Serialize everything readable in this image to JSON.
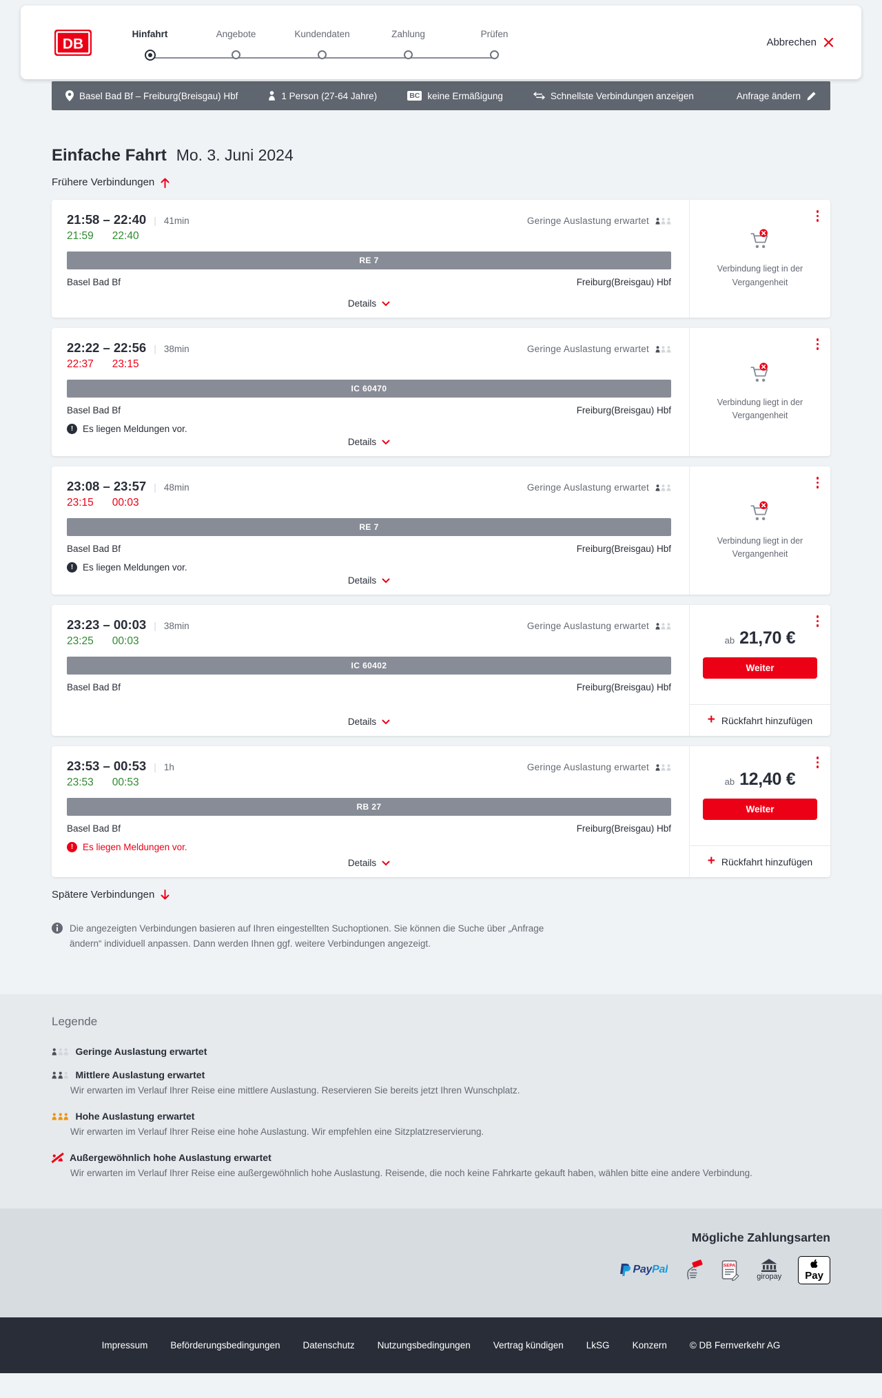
{
  "header": {
    "logo_text": "DB",
    "steps": [
      {
        "label": "Hinfahrt",
        "active": true
      },
      {
        "label": "Angebote",
        "active": false
      },
      {
        "label": "Kundendaten",
        "active": false
      },
      {
        "label": "Zahlung",
        "active": false
      },
      {
        "label": "Prüfen",
        "active": false
      }
    ],
    "cancel_label": "Abbrechen"
  },
  "searchbar": {
    "route": "Basel Bad Bf – Freiburg(Breisgau) Hbf",
    "passengers": "1 Person (27-64 Jahre)",
    "bahncard_badge": "BC",
    "discount": "keine Ermäßigung",
    "fastest_toggle": "Schnellste Verbindungen anzeigen",
    "edit_request": "Anfrage ändern"
  },
  "main": {
    "trip_type": "Einfache Fahrt",
    "trip_date": "Mo. 3. Juni 2024",
    "earlier_link": "Frühere Verbindungen",
    "later_link": "Spätere Verbindungen",
    "info_note": "Die angezeigten Verbindungen basieren auf Ihren eingestellten Suchoptionen. Sie können die Suche über „Anfrage ändern“ individuell anpassen. Dann werden Ihnen ggf. weitere Verbindungen angezeigt.",
    "connections": [
      {
        "time_range": "21:58 – 22:40",
        "duration": "41min",
        "departure_actual": "21:59",
        "arrival_actual": "22:40",
        "punctuality": "ontime",
        "occupancy": "Geringe Auslastung erwartet",
        "occupancy_level": "low",
        "line": "RE 7",
        "from": "Basel Bad Bf",
        "to": "Freiburg(Breisgau) Hbf",
        "message": null,
        "message_severity": null,
        "details_label": "Details",
        "offer": {
          "type": "past",
          "text": "Verbindung liegt in der Vergangenheit"
        }
      },
      {
        "time_range": "22:22 – 22:56",
        "duration": "38min",
        "departure_actual": "22:37",
        "arrival_actual": "23:15",
        "punctuality": "delayed",
        "occupancy": "Geringe Auslastung erwartet",
        "occupancy_level": "low",
        "line": "IC 60470",
        "from": "Basel Bad Bf",
        "to": "Freiburg(Breisgau) Hbf",
        "message": "Es liegen Meldungen vor.",
        "message_severity": "info",
        "details_label": "Details",
        "offer": {
          "type": "past",
          "text": "Verbindung liegt in der Vergangenheit"
        }
      },
      {
        "time_range": "23:08 – 23:57",
        "duration": "48min",
        "departure_actual": "23:15",
        "arrival_actual": "00:03",
        "punctuality": "delayed",
        "occupancy": "Geringe Auslastung erwartet",
        "occupancy_level": "low",
        "line": "RE 7",
        "from": "Basel Bad Bf",
        "to": "Freiburg(Breisgau) Hbf",
        "message": "Es liegen Meldungen vor.",
        "message_severity": "info",
        "details_label": "Details",
        "offer": {
          "type": "past",
          "text": "Verbindung liegt in der Vergangenheit"
        }
      },
      {
        "time_range": "23:23 – 00:03",
        "duration": "38min",
        "departure_actual": "23:25",
        "arrival_actual": "00:03",
        "punctuality": "ontime",
        "occupancy": "Geringe Auslastung erwartet",
        "occupancy_level": "low",
        "line": "IC 60402",
        "from": "Basel Bad Bf",
        "to": "Freiburg(Breisgau) Hbf",
        "message": null,
        "message_severity": null,
        "details_label": "Details",
        "offer": {
          "type": "price",
          "prefix": "ab",
          "price": "21,70 €",
          "cta": "Weiter",
          "add_return": "Rückfahrt hinzufügen"
        }
      },
      {
        "time_range": "23:53 – 00:53",
        "duration": "1h",
        "departure_actual": "23:53",
        "arrival_actual": "00:53",
        "punctuality": "ontime",
        "occupancy": "Geringe Auslastung erwartet",
        "occupancy_level": "low",
        "line": "RB 27",
        "from": "Basel Bad Bf",
        "to": "Freiburg(Breisgau) Hbf",
        "message": "Es liegen Meldungen vor.",
        "message_severity": "critical",
        "details_label": "Details",
        "offer": {
          "type": "price",
          "prefix": "ab",
          "price": "12,40 €",
          "cta": "Weiter",
          "add_return": "Rückfahrt hinzufügen"
        }
      }
    ]
  },
  "legend": {
    "title": "Legende",
    "items": [
      {
        "icon": "low",
        "label": "Geringe Auslastung erwartet",
        "description": null
      },
      {
        "icon": "medium",
        "label": "Mittlere Auslastung erwartet",
        "description": "Wir erwarten im Verlauf Ihrer Reise eine mittlere Auslastung. Reservieren Sie bereits jetzt Ihren Wunschplatz."
      },
      {
        "icon": "high",
        "label": "Hohe Auslastung erwartet",
        "description": "Wir erwarten im Verlauf Ihrer Reise eine hohe Auslastung. Wir empfehlen eine Sitzplatzreservierung."
      },
      {
        "icon": "exceptional",
        "label": "Außergewöhnlich hohe Auslastung erwartet",
        "description": "Wir erwarten im Verlauf Ihrer Reise eine außergewöhnlich hohe Auslastung. Reisende, die noch keine Fahrkarte gekauft haben, wählen bitte eine andere Verbindung."
      }
    ]
  },
  "payment": {
    "title": "Mögliche Zahlungsarten",
    "methods": [
      {
        "name": "PayPal",
        "visible_text": "PayPal"
      },
      {
        "name": "Kreditkarte",
        "visible_text": ""
      },
      {
        "name": "SEPA-Lastschrift",
        "visible_text": "SEPA"
      },
      {
        "name": "giropay",
        "visible_text": "giropay"
      },
      {
        "name": "Apple Pay",
        "visible_text": "Pay"
      }
    ]
  },
  "footer": {
    "links": [
      "Impressum",
      "Beförderungsbedingungen",
      "Datenschutz",
      "Nutzungsbedingungen",
      "Vertrag kündigen",
      "LkSG",
      "Konzern"
    ],
    "copyright": "© DB Fernverkehr AG"
  },
  "colors": {
    "brand_red": "#ec0016",
    "ontime_green": "#2f8a2f",
    "dark": "#282d37",
    "gray_text": "#646973",
    "summary_bar": "#60666f",
    "line_badge": "#878c96",
    "occupancy_high": "#f39200"
  }
}
